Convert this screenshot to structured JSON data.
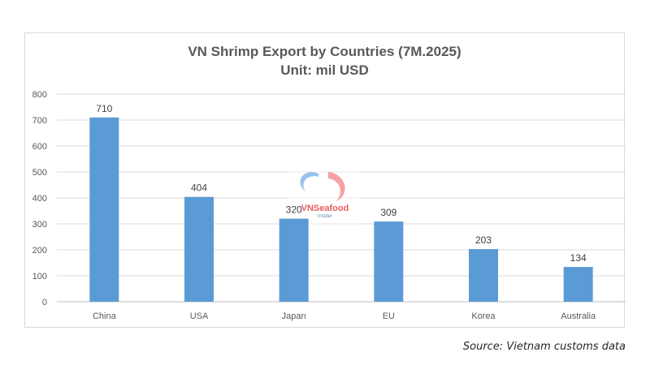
{
  "chart_data": {
    "type": "bar",
    "title": "VN Shrimp Export by Countries (7M.2025)",
    "subtitle": "Unit: mil USD",
    "categories": [
      "China",
      "USA",
      "Japan",
      "EU",
      "Korea",
      "Australia"
    ],
    "values": [
      710,
      404,
      320,
      309,
      203,
      134
    ],
    "ylim": [
      0,
      800
    ],
    "yticks": [
      0,
      100,
      200,
      300,
      400,
      500,
      600,
      700,
      800
    ],
    "xlabel": "",
    "ylabel": "",
    "grid": true,
    "bar_color": "#5b9bd5",
    "data_labels": true
  },
  "watermark": {
    "brand": "VNSeafood",
    "sub": "Insider"
  },
  "source": "Source: Vietnam customs data"
}
